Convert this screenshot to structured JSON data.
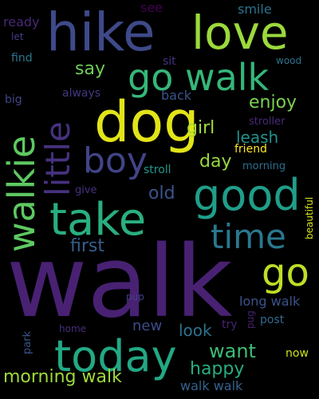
{
  "palette": {
    "background": "#000000",
    "deep_purple": "#440154",
    "indigo": "#472d7b",
    "blue": "#3b528b",
    "steel_blue": "#2c728e",
    "teal": "#21918c",
    "green_teal": "#27ad81",
    "green": "#5ec962",
    "lime": "#aadc32",
    "yellow": "#fde725"
  },
  "words": [
    {
      "text": "walk",
      "color": "#482173"
    },
    {
      "text": "hike",
      "color": "#3e4a89"
    },
    {
      "text": "dog",
      "color": "#e2e418"
    },
    {
      "text": "love",
      "color": "#9bd93c"
    },
    {
      "text": "go walk",
      "color": "#35b779"
    },
    {
      "text": "take",
      "color": "#29af7f"
    },
    {
      "text": "good",
      "color": "#1f9e89"
    },
    {
      "text": "today",
      "color": "#22a884"
    },
    {
      "text": "walkie",
      "color": "#5ec962"
    },
    {
      "text": "little",
      "color": "#46317e"
    },
    {
      "text": "boy",
      "color": "#414487"
    },
    {
      "text": "time",
      "color": "#2a788e"
    },
    {
      "text": "go",
      "color": "#bddf26"
    },
    {
      "text": "first",
      "color": "#355f8d"
    },
    {
      "text": "enjoy",
      "color": "#7ad151"
    },
    {
      "text": "girl",
      "color": "#a5db36"
    },
    {
      "text": "say",
      "color": "#6ece58"
    },
    {
      "text": "leash",
      "color": "#21918c"
    },
    {
      "text": "day",
      "color": "#98d83e"
    },
    {
      "text": "old",
      "color": "#3b528b"
    },
    {
      "text": "want",
      "color": "#3dbc74"
    },
    {
      "text": "happy",
      "color": "#27ad81"
    },
    {
      "text": "morning walk",
      "color": "#9fda3a"
    },
    {
      "text": "new",
      "color": "#3e4a89"
    },
    {
      "text": "look",
      "color": "#2c728e"
    },
    {
      "text": "walk walk",
      "color": "#34618d"
    },
    {
      "text": "long walk",
      "color": "#3b528b"
    },
    {
      "text": "smile",
      "color": "#2c728e"
    },
    {
      "text": "see",
      "color": "#440154"
    },
    {
      "text": "ready",
      "color": "#482878"
    },
    {
      "text": "let",
      "color": "#433e85"
    },
    {
      "text": "find",
      "color": "#2a788e"
    },
    {
      "text": "sit",
      "color": "#46307e"
    },
    {
      "text": "wood",
      "color": "#2c728e"
    },
    {
      "text": "always",
      "color": "#453781"
    },
    {
      "text": "big",
      "color": "#414487"
    },
    {
      "text": "back",
      "color": "#3b528b"
    },
    {
      "text": "stroller",
      "color": "#472a7a"
    },
    {
      "text": "friend",
      "color": "#fde725"
    },
    {
      "text": "stroll",
      "color": "#1f988b"
    },
    {
      "text": "morning",
      "color": "#2e6f8e"
    },
    {
      "text": "give",
      "color": "#46307e"
    },
    {
      "text": "beautiful",
      "color": "#d8e219"
    },
    {
      "text": "pup",
      "color": "#433e85"
    },
    {
      "text": "park",
      "color": "#3b528b"
    },
    {
      "text": "home",
      "color": "#472d7b"
    },
    {
      "text": "try",
      "color": "#482374"
    },
    {
      "text": "pug",
      "color": "#482173"
    },
    {
      "text": "post",
      "color": "#31688e"
    },
    {
      "text": "now",
      "color": "#cde11d"
    }
  ]
}
